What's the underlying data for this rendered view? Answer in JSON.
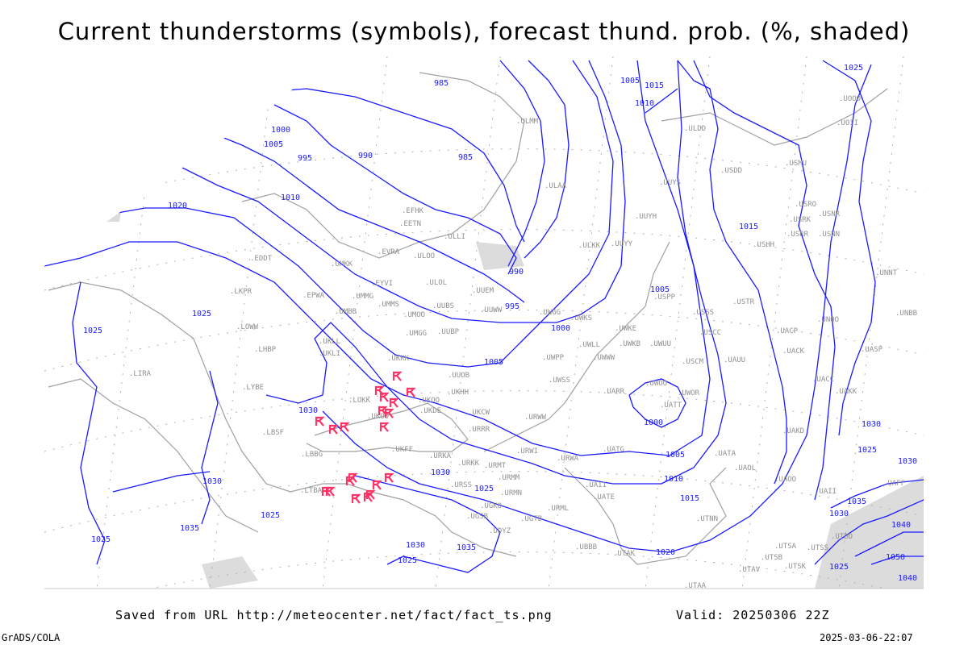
{
  "title": "Current thunderstorms (symbols), forecast thund. prob. (%, shaded)",
  "footer": {
    "saved_from": "Saved from URL http://meteocenter.net/fact/fact_ts.png",
    "valid": "Valid: 20250306 22Z",
    "software": "GrADS/COLA",
    "generated": "2025-03-06-22:07"
  },
  "colors": {
    "isobar": "#1a1aff",
    "coastline": "#a0a0a0",
    "thunderstorm_symbol": "#ff3366",
    "shading": "#dcdcdc"
  },
  "isobar_labels": [
    "985",
    "1005",
    "1015",
    "1010",
    "1000",
    "1005",
    "995",
    "990",
    "985",
    "1010",
    "1020",
    "1025",
    "1025",
    "990",
    "995",
    "1000",
    "1005",
    "1005",
    "1015",
    "1030",
    "1025",
    "1030",
    "1030",
    "1025",
    "1030",
    "1035",
    "1025",
    "1030",
    "1035",
    "1025",
    "1020",
    "1015",
    "1010",
    "1005",
    "1000",
    "1030",
    "1025",
    "1030",
    "1035",
    "1040",
    "1025",
    "1050",
    "1040",
    "1025"
  ],
  "stations": [
    "EDDT",
    "LKPR",
    "EPWA",
    "LOWW",
    "LHBP",
    "LIRA",
    "LYBE",
    "LBSF",
    "LBBG",
    "LTBA",
    "UKLL",
    "UKLI",
    "UMBB",
    "UMKK",
    "UMMG",
    "EYVI",
    "EVRA",
    "EETN",
    "EFHK",
    "ULLI",
    "ULOO",
    "ULOL",
    "UMMS",
    "UMOO",
    "UUBS",
    "UMGG",
    "UUBP",
    "UKKK",
    "UUOB",
    "UKHH",
    "UKOO",
    "UKDE",
    "LUKK",
    "UKOO",
    "UKFF",
    "URKA",
    "URKK",
    "URRR",
    "UKCW",
    "URWI",
    "UUEM",
    "UUWW",
    "ULAA",
    "ULMM",
    "UUYS",
    "UUYH",
    "ULKK",
    "UUYY",
    "USPP",
    "UWGG",
    "UWKS",
    "UWKE",
    "UWLL",
    "UWKB",
    "UWUU",
    "UWPP",
    "UWWW",
    "USCM",
    "USSS",
    "USCC",
    "USTR",
    "UAUU",
    "UWSS",
    "UWOO",
    "UWOR",
    "UATT",
    "UARR",
    "URWW",
    "URWA",
    "UATG",
    "UATA",
    "UAOL",
    "UAOO",
    "UAKD",
    "UAII",
    "UATE",
    "URML",
    "UBBB",
    "UTAK",
    "UTNN",
    "UTSA",
    "UTSB",
    "UTSK",
    "UTAV",
    "UTAA",
    "UGSB",
    "UGKO",
    "URSS",
    "URMT",
    "URMM",
    "URMN",
    "UDYZ",
    "UGTB",
    "ULDD",
    "USDD",
    "USMU",
    "USRR",
    "USRK",
    "USRO",
    "USNR",
    "USNN",
    "USHH",
    "UACP",
    "UACK",
    "UACC",
    "UNOO",
    "UAKK",
    "UASP",
    "UNNT",
    "UNBB",
    "UOII",
    "UOOO",
    "UAFF",
    "UAII",
    "UTDD",
    "UTSS"
  ],
  "thunderstorm_symbol": "thunderstorm-icon"
}
